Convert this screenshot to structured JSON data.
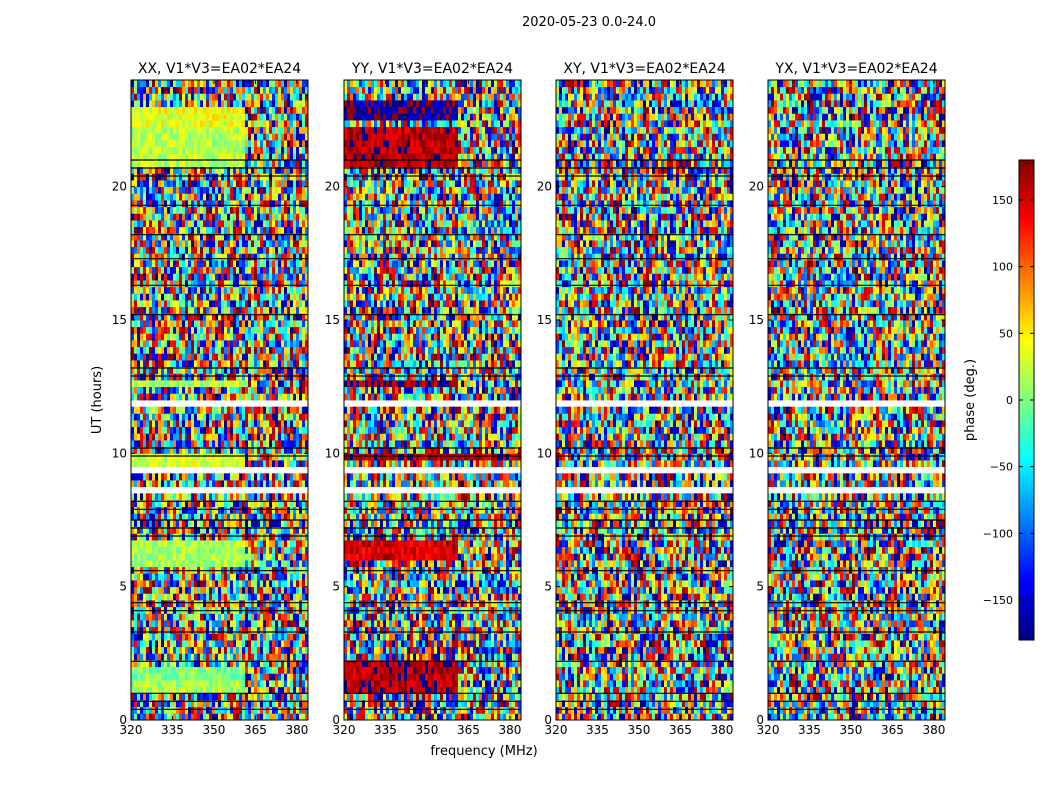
{
  "figure": {
    "suptitle": "2020-05-23 0.0-24.0",
    "xlabel": "frequency (MHz)",
    "ylabel": "UT (hours)"
  },
  "colorbar": {
    "label": "phase (deg.)",
    "ticks": [
      -150,
      -100,
      -50,
      0,
      50,
      100,
      150
    ],
    "range": [
      -180,
      180
    ],
    "colormap": "jet",
    "colors": [
      "#00007f",
      "#0000ff",
      "#007fff",
      "#00ffff",
      "#7fff7f",
      "#ffff00",
      "#ff7f00",
      "#ff0000",
      "#7f0000"
    ]
  },
  "chart_data": [
    {
      "type": "heatmap",
      "title": "XX, V1*V3=EA02*EA24",
      "xlabel": "frequency (MHz)",
      "ylabel": "UT (hours)",
      "x_ticks": [
        320,
        335,
        350,
        365,
        380
      ],
      "y_ticks": [
        0,
        5,
        10,
        15,
        20
      ],
      "xlim": [
        320,
        384
      ],
      "ylim": [
        0,
        24
      ],
      "value": "phase (deg.)",
      "coherent_bands": [
        {
          "t0": 1.1,
          "t1": 1.3,
          "f1": 361,
          "phase": 20
        },
        {
          "t0": 1.3,
          "t1": 1.6,
          "f1": 361,
          "phase": 10
        },
        {
          "t0": 1.6,
          "t1": 2.0,
          "f1": 361,
          "phase": 0
        },
        {
          "t0": 5.8,
          "t1": 6.8,
          "f1": 361,
          "phase": 15
        },
        {
          "t0": 9.6,
          "t1": 9.9,
          "f1": 361,
          "phase": 30
        },
        {
          "t0": 12.5,
          "t1": 12.8,
          "f1": 361,
          "phase": 20
        },
        {
          "t0": 20.8,
          "t1": 22.2,
          "f1": 361,
          "phase": 20
        },
        {
          "t0": 22.2,
          "t1": 22.9,
          "f1": 361,
          "phase": 40
        }
      ]
    },
    {
      "type": "heatmap",
      "title": "YY, V1*V3=EA02*EA24",
      "xlabel": "frequency (MHz)",
      "ylabel": "UT (hours)",
      "x_ticks": [
        320,
        335,
        350,
        365,
        380
      ],
      "y_ticks": [
        0,
        5,
        10,
        15,
        20
      ],
      "xlim": [
        320,
        384
      ],
      "ylim": [
        0,
        24
      ],
      "value": "phase (deg.)",
      "coherent_bands": [
        {
          "t0": 0.9,
          "t1": 2.2,
          "f1": 361,
          "phase": 160
        },
        {
          "t0": 5.9,
          "t1": 6.8,
          "f1": 361,
          "phase": 150
        },
        {
          "t0": 9.7,
          "t1": 9.9,
          "f1": 384,
          "phase": 165
        },
        {
          "t0": 12.5,
          "t1": 12.8,
          "f1": 361,
          "phase": 170
        },
        {
          "t0": 20.8,
          "t1": 22.2,
          "f1": 361,
          "phase": 160
        },
        {
          "t0": 22.6,
          "t1": 23.3,
          "f1": 361,
          "phase": -170
        }
      ]
    },
    {
      "type": "heatmap",
      "title": "XY, V1*V3=EA02*EA24",
      "xlabel": "frequency (MHz)",
      "ylabel": "UT (hours)",
      "x_ticks": [
        320,
        335,
        350,
        365,
        380
      ],
      "y_ticks": [
        0,
        5,
        10,
        15,
        20
      ],
      "xlim": [
        320,
        384
      ],
      "ylim": [
        0,
        24
      ],
      "value": "phase (deg.)",
      "coherent_bands": []
    },
    {
      "type": "heatmap",
      "title": "YX, V1*V3=EA02*EA24",
      "xlabel": "frequency (MHz)",
      "ylabel": "UT (hours)",
      "x_ticks": [
        320,
        335,
        350,
        365,
        380
      ],
      "y_ticks": [
        0,
        5,
        10,
        15,
        20
      ],
      "xlim": [
        320,
        384
      ],
      "ylim": [
        0,
        24
      ],
      "value": "phase (deg.)",
      "coherent_bands": []
    }
  ],
  "blank_intervals_hours": [
    [
      2.4,
      2.6
    ],
    [
      2.9,
      3.1
    ],
    [
      8.6,
      8.8
    ],
    [
      9.2,
      9.4
    ],
    [
      11.7,
      11.9
    ],
    [
      12.2,
      12.3
    ],
    [
      16.9,
      17.0
    ],
    [
      17.5,
      17.6
    ],
    [
      18.9,
      19.0
    ],
    [
      22.9,
      23.0
    ]
  ],
  "flagged_rows_hours": [
    0.4,
    0.7,
    1.0,
    2.2,
    3.3,
    4.1,
    4.4,
    5.6,
    6.9,
    7.2,
    7.5,
    7.9,
    8.2,
    9.9,
    10.2,
    12.9,
    13.2,
    15.2,
    16.3,
    17.3,
    18.2,
    19.3,
    20.4,
    20.7,
    21.0
  ]
}
